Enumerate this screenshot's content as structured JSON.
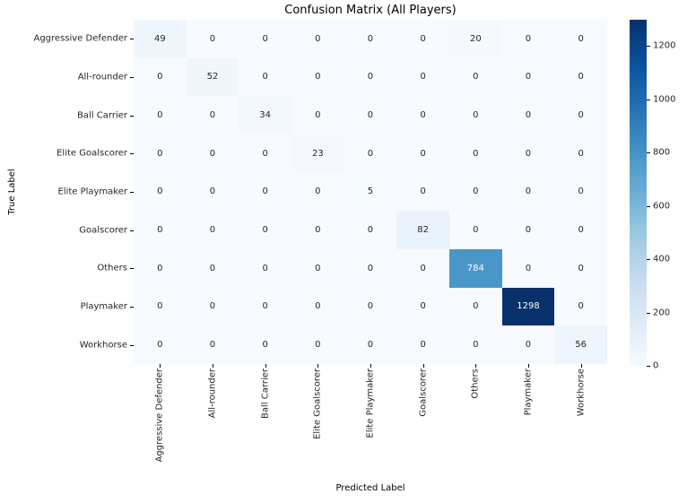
{
  "chart_data": {
    "type": "heatmap",
    "title": "Confusion Matrix (All Players)",
    "xlabel": "Predicted Label",
    "ylabel": "True Label",
    "categories": [
      "Aggressive Defender",
      "All-rounder",
      "Ball Carrier",
      "Elite Goalscorer",
      "Elite Playmaker",
      "Goalscorer",
      "Others",
      "Playmaker",
      "Workhorse"
    ],
    "matrix": [
      [
        49,
        0,
        0,
        0,
        0,
        0,
        20,
        0,
        0
      ],
      [
        0,
        52,
        0,
        0,
        0,
        0,
        0,
        0,
        0
      ],
      [
        0,
        0,
        34,
        0,
        0,
        0,
        0,
        0,
        0
      ],
      [
        0,
        0,
        0,
        23,
        0,
        0,
        0,
        0,
        0
      ],
      [
        0,
        0,
        0,
        0,
        5,
        0,
        0,
        0,
        0
      ],
      [
        0,
        0,
        0,
        0,
        0,
        82,
        0,
        0,
        0
      ],
      [
        0,
        0,
        0,
        0,
        0,
        0,
        784,
        0,
        0
      ],
      [
        0,
        0,
        0,
        0,
        0,
        0,
        0,
        1298,
        0
      ],
      [
        0,
        0,
        0,
        0,
        0,
        0,
        0,
        0,
        56
      ]
    ],
    "colormap": "Blues",
    "vmin": 0,
    "vmax": 1298,
    "colorbar_ticks": [
      0,
      200,
      400,
      600,
      800,
      1000,
      1200
    ],
    "colormap_stops": [
      "#f7fbff",
      "#deebf7",
      "#c6dbef",
      "#9ecae1",
      "#6baed6",
      "#4292c6",
      "#2171b5",
      "#08519c",
      "#08306b"
    ],
    "annot_dark_color": "#262626",
    "annot_light_color": "#ffffff",
    "legend_position": "right-colorbar",
    "grid": false
  }
}
